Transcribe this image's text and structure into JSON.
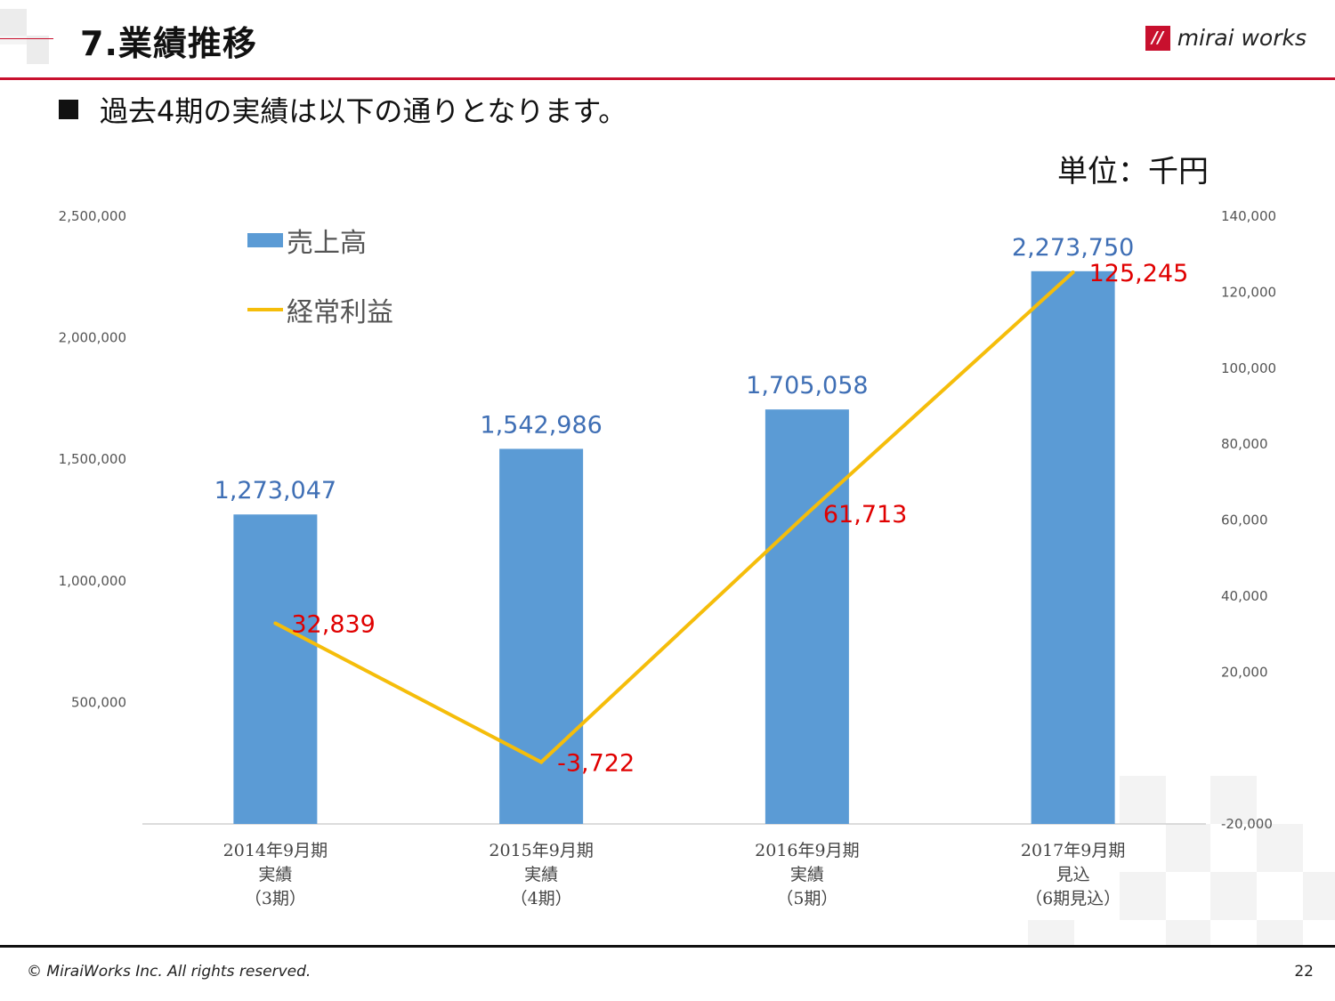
{
  "header": {
    "title": "7.業績推移",
    "logo_text": "mirai works",
    "logo_mark": "//"
  },
  "subtitle": "過去4期の実績は以下の通りとなります。",
  "unit": "単位：千円",
  "footer": {
    "copyright": "© MiraiWorks Inc. All rights reserved.",
    "page": "22"
  },
  "colors": {
    "bar": "#5b9bd5",
    "line": "#f5bd0a",
    "bar_label": "#3f6fb5",
    "line_label": "#e00000",
    "accent": "#c8102e"
  },
  "chart_data": {
    "type": "bar",
    "categories": [
      [
        "2014年9月期",
        "実績",
        "（3期）"
      ],
      [
        "2015年9月期",
        "実績",
        "（4期）"
      ],
      [
        "2016年9月期",
        "実績",
        "（5期）"
      ],
      [
        "2017年9月期",
        "見込",
        "（6期見込）"
      ]
    ],
    "series": [
      {
        "name": "売上高",
        "type": "bar",
        "axis": "left",
        "values": [
          1273047,
          1542986,
          1705058,
          2273750
        ],
        "labels": [
          "1,273,047",
          "1,542,986",
          "1,705,058",
          "2,273,750"
        ]
      },
      {
        "name": "経常利益",
        "type": "line",
        "axis": "right",
        "values": [
          32839,
          -3722,
          61713,
          125245
        ],
        "labels": [
          "32,839",
          "-3,722",
          "61,713",
          "125,245"
        ]
      }
    ],
    "y_left": {
      "ylim": [
        0,
        2500000
      ],
      "ticks": [
        "500,000",
        "1,000,000",
        "1,500,000",
        "2,000,000",
        "2,500,000"
      ],
      "tick_values": [
        500000,
        1000000,
        1500000,
        2000000,
        2500000
      ]
    },
    "y_right": {
      "ylim": [
        -20000,
        140000
      ],
      "ticks": [
        "-20,000",
        "20,000",
        "40,000",
        "60,000",
        "80,000",
        "100,000",
        "120,000",
        "140,000"
      ],
      "tick_values": [
        -20000,
        20000,
        40000,
        60000,
        80000,
        100000,
        120000,
        140000
      ]
    },
    "legend": "top-left",
    "grid": false
  }
}
